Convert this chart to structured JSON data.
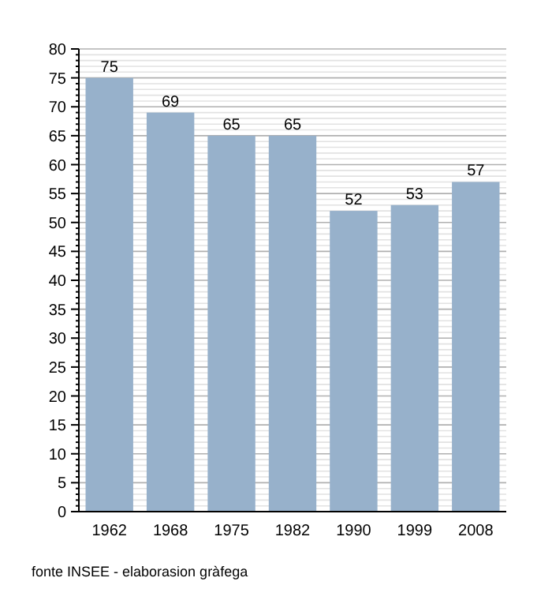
{
  "chart_data": {
    "type": "bar",
    "categories": [
      "1962",
      "1968",
      "1975",
      "1982",
      "1990",
      "1999",
      "2008"
    ],
    "values": [
      75,
      69,
      65,
      65,
      52,
      53,
      57
    ],
    "color": "#97b1cb",
    "ylim": [
      0,
      80
    ],
    "yticks": [
      0,
      5,
      10,
      15,
      20,
      25,
      30,
      35,
      40,
      45,
      50,
      55,
      60,
      65,
      70,
      75,
      80
    ],
    "grid": "y",
    "data_labels": true,
    "annotations": [
      "fonte INSEE - elaborasion gràfega"
    ]
  }
}
